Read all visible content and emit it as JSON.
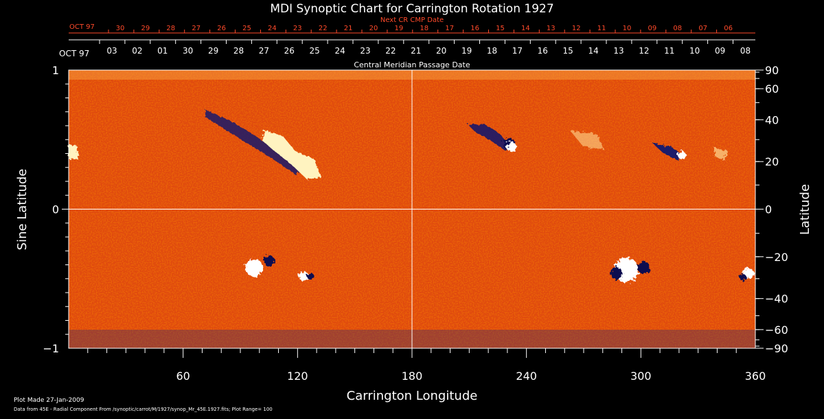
{
  "chart_data": {
    "type": "heatmap",
    "title": "MDI Synoptic Chart for Carrington Rotation 1927",
    "xlabel": "Carrington Longitude",
    "ylabel": "Sine Latitude",
    "y2label": "Latitude",
    "xlim": [
      0,
      360
    ],
    "ylim": [
      -1,
      1
    ],
    "x_ticks": [
      "60",
      "120",
      "180",
      "240",
      "300",
      "360"
    ],
    "x_tick_values": [
      60,
      120,
      180,
      240,
      300,
      360
    ],
    "y_ticks": [
      {
        "label": "1",
        "value": 1
      },
      {
        "label": "0",
        "value": 0
      },
      {
        "label": "−1",
        "value": -1
      }
    ],
    "latitude_ticks": [
      {
        "label": "90",
        "deg": 90
      },
      {
        "label": "60",
        "deg": 60
      },
      {
        "label": "40",
        "deg": 40
      },
      {
        "label": "20",
        "deg": 20
      },
      {
        "label": "0",
        "deg": 0
      },
      {
        "label": "−20",
        "deg": -20
      },
      {
        "label": "−40",
        "deg": -40
      },
      {
        "label": "−60",
        "deg": -60
      },
      {
        "label": "−90",
        "deg": -90
      }
    ],
    "cmp_axis_title": "Central Meridian Passage Date",
    "cmp_month_label": "OCT 97",
    "cmp_dates": [
      "03",
      "02",
      "01",
      "30",
      "29",
      "28",
      "27",
      "26",
      "25",
      "24",
      "23",
      "22",
      "21",
      "20",
      "19",
      "18",
      "17",
      "16",
      "15",
      "14",
      "13",
      "12",
      "11",
      "10",
      "09",
      "08"
    ],
    "next_cr_axis_title": "Next CR CMP Date",
    "next_cr_month_label": "OCT 97",
    "next_cr_dates": [
      "30",
      "29",
      "28",
      "27",
      "26",
      "25",
      "24",
      "23",
      "22",
      "21",
      "20",
      "19",
      "18",
      "17",
      "16",
      "15",
      "14",
      "13",
      "12",
      "11",
      "10",
      "09",
      "08",
      "07",
      "06"
    ],
    "colors": {
      "background_field": "#e04a0e",
      "positive_polarity": "#ffffff",
      "negative_polarity": "#1a1a6a",
      "axes": "#ffffff",
      "next_cr_text": "#ff4a2a"
    }
  },
  "footer": {
    "plot_made": "Plot Made 27-Jan-2009",
    "data_source": "Data from 45E - Radial Component From /synoptic/carrot/M/1927/synop_Mr_45E.1927.fits; Plot Range=  100"
  }
}
